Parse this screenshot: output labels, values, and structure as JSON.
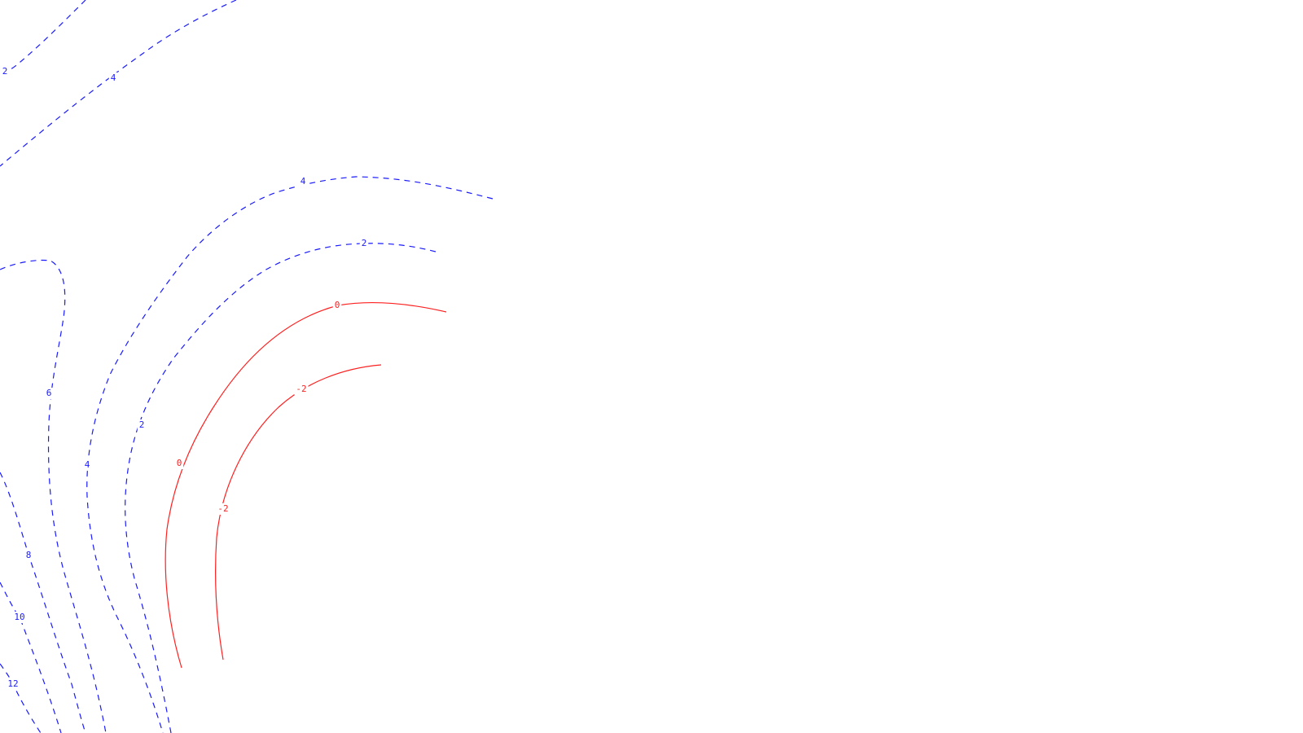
{
  "chart_data": {
    "type": "contour",
    "title": "",
    "xlabel": "",
    "ylabel": "",
    "grid": false,
    "colors": {
      "positive": "#1a1aff",
      "negative": "#ff2020"
    },
    "levels": [
      {
        "id": "c-neg2",
        "level": -2,
        "labels": [
          "-2",
          "-2"
        ],
        "style": "solid",
        "color": "#ff2020"
      },
      {
        "id": "c-0",
        "level": 0,
        "labels": [
          "0",
          "0"
        ],
        "style": "solid",
        "color": "#ff2020"
      },
      {
        "id": "c-2-arc",
        "level": 2,
        "labels": [
          "2",
          "2"
        ],
        "style": "dashed",
        "color": "#1a1aff"
      },
      {
        "id": "c-4-arc",
        "level": 4,
        "labels": [
          "4",
          "4"
        ],
        "style": "dashed",
        "color": "#1a1aff"
      },
      {
        "id": "c-6",
        "level": 6,
        "labels": [
          "6"
        ],
        "style": "dashed",
        "color": "#1a1aff"
      },
      {
        "id": "c-8",
        "level": 8,
        "labels": [
          "8"
        ],
        "style": "dashed",
        "color": "#1a1aff"
      },
      {
        "id": "c-10",
        "level": 10,
        "labels": [
          "10"
        ],
        "style": "dashed",
        "color": "#1a1aff"
      },
      {
        "id": "c-12",
        "level": 12,
        "labels": [
          "12"
        ],
        "style": "dashed",
        "color": "#1a1aff"
      },
      {
        "id": "c-4-top",
        "level": 4,
        "labels": [
          "4"
        ],
        "style": "dashed",
        "color": "#1a1aff"
      },
      {
        "id": "c-2-top",
        "level": 2,
        "labels": [
          "2"
        ],
        "style": "dashed",
        "color": "#1a1aff"
      }
    ]
  }
}
